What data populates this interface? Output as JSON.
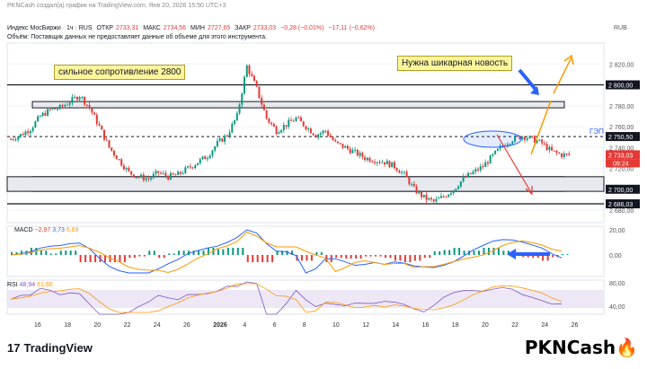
{
  "watermark": "PKNCash создал(а) график на TradingView.com, Янв 20, 2026 15:50 UTC+3",
  "header": {
    "symbol": "Индекс МосБиржи · 1ч · RUS",
    "open_label": "ОТКР",
    "open": "2733,31",
    "high_label": "МАКС",
    "high": "2734,56",
    "low_label": "МИН",
    "low": "2727,65",
    "close_label": "ЗАКР",
    "close": "2733,03",
    "change": "−0,28 (−0,01%)",
    "change2": "−17,11 (−0,62%)",
    "volume_note": "Объём: Поставщик данных не предоставляет данные об объеме для этого инструмента.",
    "currency": "RUB"
  },
  "annotations": {
    "resistance": "сильное сопротивление 2800",
    "news": "Нужна шикарная новость",
    "gap": "ГЭП"
  },
  "price_labels": {
    "p2800": "2 800,00",
    "p2750": "2 750,50",
    "p2733": "2 733,03",
    "countdown": "09:24",
    "p2700": "2 700,00",
    "p2686": "2 686,03"
  },
  "macd": {
    "label": "MACD",
    "v1": "−2,97",
    "v2": "3,73",
    "v3": "6,69"
  },
  "rsi": {
    "label": "RSI",
    "v1": "48,94",
    "v2": "61,66"
  },
  "brand": {
    "name": "TradingView",
    "watermark2": "PKNCash"
  },
  "colors": {
    "up": "#089981",
    "down": "#e53935",
    "macd": "#2962ff",
    "signal": "#ff9800",
    "rsi": "#7e57c2"
  },
  "chart_data": {
    "type": "candlestick",
    "y_axis_ticks": [
      2820,
      2800,
      2780,
      2760,
      2740,
      2720,
      2700,
      2680
    ],
    "y_axis_tick_labels": [
      "2 820,00",
      "2 800,00",
      "2 780,00",
      "2 760,00",
      "2 740,00",
      "2 720,00",
      "2 700,00",
      "2 680,00"
    ],
    "ylim": [
      2668,
      2840
    ],
    "x_tick_labels": [
      "16",
      "18",
      "20",
      "22",
      "24",
      "26",
      "2026",
      "4",
      "6",
      "8",
      "10",
      "12",
      "14",
      "16",
      "18",
      "20",
      "22",
      "24",
      "26"
    ],
    "macd_ticks": [
      "20,00",
      "0,00"
    ],
    "rsi_ticks": [
      "80,00",
      "40,00"
    ],
    "close_path": [
      2748,
      2752,
      2758,
      2770,
      2776,
      2778,
      2784,
      2790,
      2778,
      2760,
      2740,
      2728,
      2716,
      2712,
      2710,
      2716,
      2712,
      2714,
      2720,
      2726,
      2732,
      2744,
      2752,
      2770,
      2818,
      2796,
      2768,
      2756,
      2762,
      2768,
      2760,
      2752,
      2756,
      2744,
      2740,
      2735,
      2730,
      2728,
      2726,
      2722,
      2714,
      2700,
      2692,
      2688,
      2693,
      2700,
      2710,
      2716,
      2722,
      2732,
      2742,
      2748,
      2751,
      2748,
      2744,
      2736,
      2733
    ],
    "levels": [
      2800,
      2750.5,
      2700,
      2686.03
    ],
    "zones": [
      [
        2778,
        2784
      ],
      [
        2698,
        2712
      ]
    ],
    "last_price": 2733.03
  }
}
